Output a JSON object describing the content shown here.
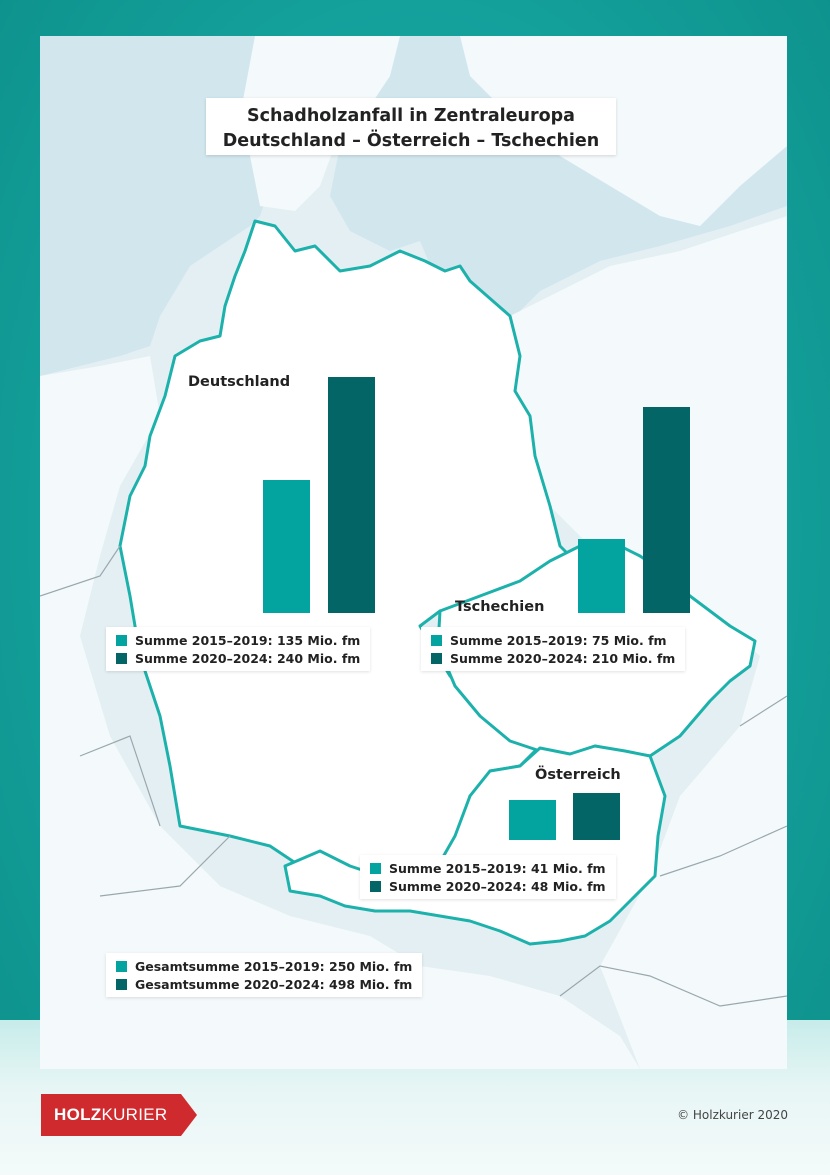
{
  "title_line1": "Schadholzanfall in Zentraleuropa",
  "title_line2": "Deutschland – Österreich – Tschechien",
  "colors": {
    "period_2015_2019": "#03a4a0",
    "period_2020_2024": "#046567",
    "border": "#1db1ac",
    "map_background": "#e3eff3"
  },
  "chart_data": [
    {
      "type": "bar",
      "title": "Deutschland",
      "unit": "Mio. fm",
      "categories": [
        "Summe 2015–2019",
        "Summe 2020–2024"
      ],
      "values": [
        135,
        240
      ]
    },
    {
      "type": "bar",
      "title": "Tschechien",
      "unit": "Mio. fm",
      "categories": [
        "Summe 2015–2019",
        "Summe 2020–2024"
      ],
      "values": [
        75,
        210
      ]
    },
    {
      "type": "bar",
      "title": "Österreich",
      "unit": "Mio. fm",
      "categories": [
        "Summe 2015–2019",
        "Summe 2020–2024"
      ],
      "values": [
        41,
        48
      ]
    }
  ],
  "legends": {
    "de": [
      "Summe 2015–2019: 135 Mio. fm",
      "Summe 2020–2024: 240 Mio. fm"
    ],
    "cz": [
      "Summe 2015–2019: 75 Mio. fm",
      "Summe 2020–2024: 210 Mio. fm"
    ],
    "at": [
      "Summe 2015–2019: 41 Mio. fm",
      "Summe 2020–2024: 48 Mio. fm"
    ],
    "total": [
      "Gesamtsumme 2015–2019: 250 Mio. fm",
      "Gesamtsumme 2020–2024: 498 Mio. fm"
    ]
  },
  "footer": {
    "logo": "HOLZKURIER",
    "copyright": "© Holzkurier 2020"
  }
}
